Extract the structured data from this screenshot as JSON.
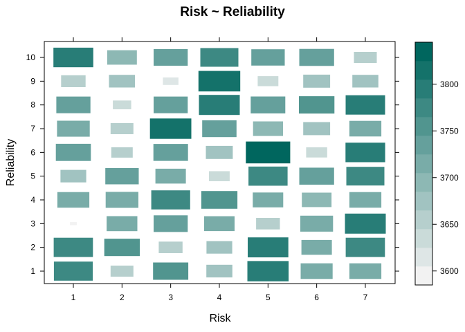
{
  "chart_data": {
    "type": "heatmap",
    "title": "Risk ~ Reliability",
    "xlabel": "Risk",
    "ylabel": "Reliability",
    "x_categories": [
      "1",
      "2",
      "3",
      "4",
      "5",
      "6",
      "7"
    ],
    "y_categories": [
      "1",
      "2",
      "3",
      "4",
      "5",
      "6",
      "7",
      "8",
      "9",
      "10"
    ],
    "values": [
      [
        3780,
        3654,
        3746,
        3674,
        3804,
        3718,
        3718
      ],
      [
        3784,
        3748,
        3660,
        3672,
        3798,
        3706,
        3784
      ],
      [
        3592,
        3708,
        3736,
        3706,
        3660,
        3724,
        3800
      ],
      [
        3718,
        3724,
        3780,
        3754,
        3706,
        3700,
        3718
      ],
      [
        3672,
        3730,
        3706,
        3642,
        3782,
        3742,
        3772
      ],
      [
        3744,
        3646,
        3740,
        3680,
        3838,
        3644,
        3788
      ],
      [
        3724,
        3654,
        3806,
        3738,
        3702,
        3680,
        3718
      ],
      [
        3736,
        3630,
        3736,
        3800,
        3740,
        3748,
        3786
      ],
      [
        3664,
        3674,
        3618,
        3810,
        3642,
        3680,
        3674
      ],
      [
        3790,
        3700,
        3736,
        3772,
        3730,
        3742,
        3654
      ]
    ],
    "colorkey": {
      "range": [
        3585,
        3845
      ],
      "ticks": [
        "3600",
        "3650",
        "3700",
        "3750",
        "3800"
      ],
      "low_color": "#f2f2f2",
      "high_color": "#00665e",
      "bands": 13
    },
    "grid": false
  }
}
